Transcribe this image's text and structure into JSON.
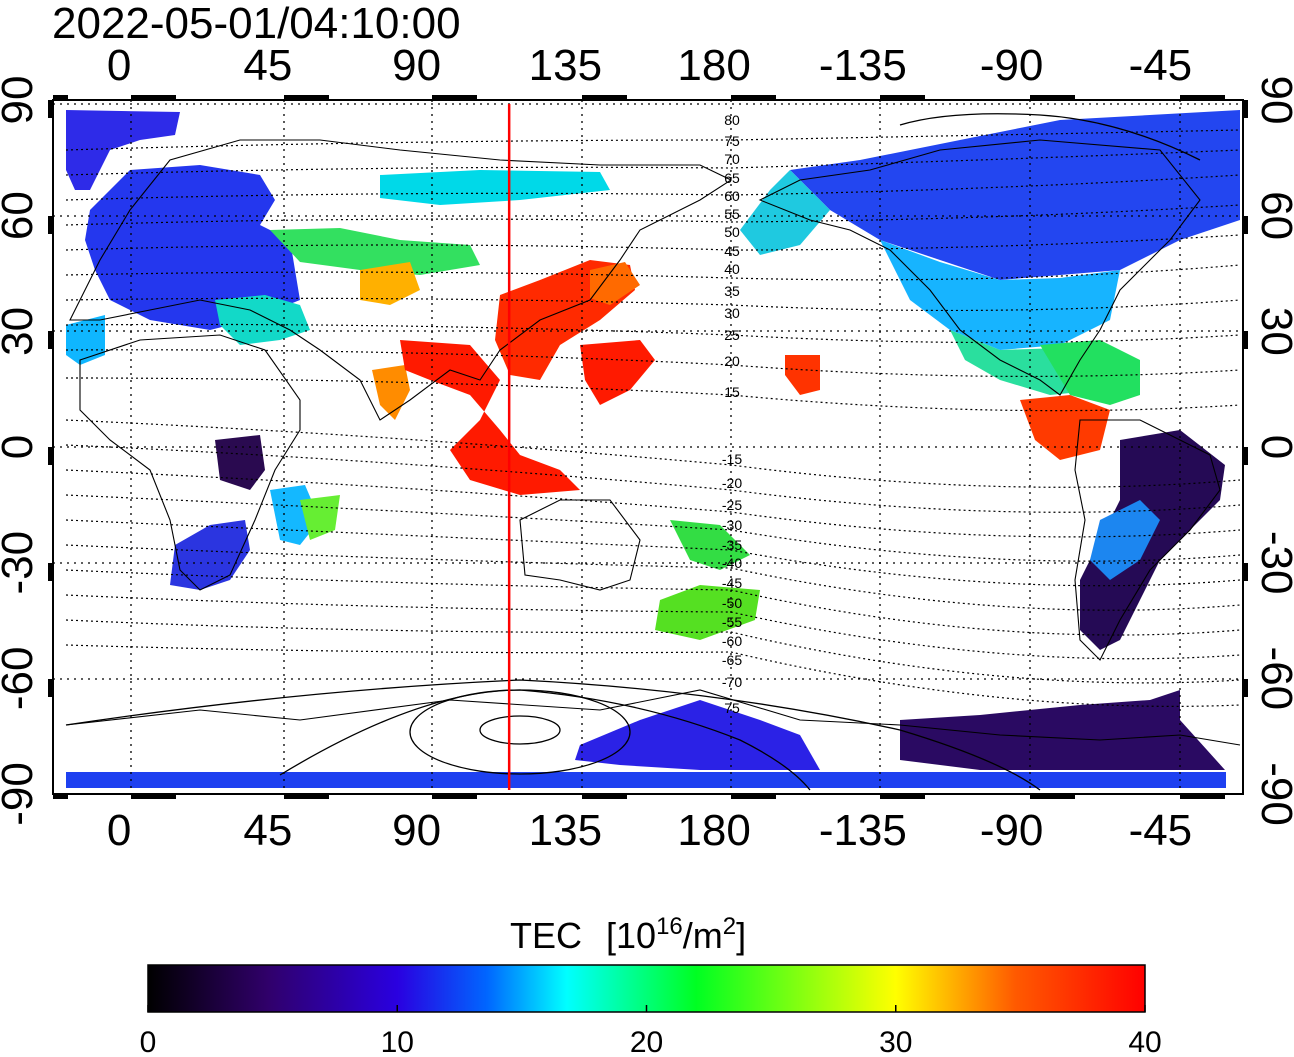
{
  "title": "2022-05-01/04:10:00",
  "map": {
    "projection": "equirectangular",
    "lon_range": [
      -20,
      340
    ],
    "lat_range": [
      -90,
      90
    ],
    "top_lon_labels": [
      "0",
      "45",
      "90",
      "135",
      "180",
      "-135",
      "-90",
      "-45"
    ],
    "bottom_lon_labels": [
      "0",
      "45",
      "90",
      "135",
      "180",
      "-135",
      "-90",
      "-45"
    ],
    "lon_label_values": [
      0,
      45,
      90,
      135,
      180,
      225,
      270,
      315
    ],
    "left_lat_labels": [
      "90",
      "60",
      "30",
      "0",
      "-30",
      "-60",
      "-90"
    ],
    "right_lat_labels": [
      "90",
      "60",
      "30",
      "0",
      "-30",
      "-60",
      "-90"
    ],
    "lat_label_values": [
      90,
      60,
      30,
      0,
      -30,
      -60,
      -90
    ],
    "grid": true,
    "red_meridian_lon": 118,
    "contour_labels_north": [
      "80",
      "75",
      "70",
      "65",
      "60",
      "55",
      "50",
      "45",
      "40",
      "35",
      "30",
      "25",
      "20",
      "15"
    ],
    "contour_labels_south": [
      "-15",
      "-20",
      "-25",
      "-30",
      "-35",
      "-40",
      "-45",
      "-50",
      "-55",
      "-60",
      "-65",
      "-70",
      "75"
    ],
    "colors": {
      "grid": "#000000",
      "meridian": "#ff0000",
      "frame": "#000000"
    }
  },
  "colorbar": {
    "title": "TEC",
    "unit_base": "[10",
    "unit_exp": "16",
    "unit_mid": "/m",
    "unit_exp2": "2",
    "unit_close": "]",
    "tick_labels": [
      "0",
      "10",
      "20",
      "30",
      "40"
    ],
    "tick_values": [
      0,
      10,
      20,
      30,
      40
    ],
    "min": 0,
    "max": 40,
    "colormap": [
      "#000000",
      "#30006a",
      "#2a00e0",
      "#0066ff",
      "#00ffff",
      "#00ff22",
      "#ffff00",
      "#ff5a00",
      "#ff0000"
    ]
  }
}
